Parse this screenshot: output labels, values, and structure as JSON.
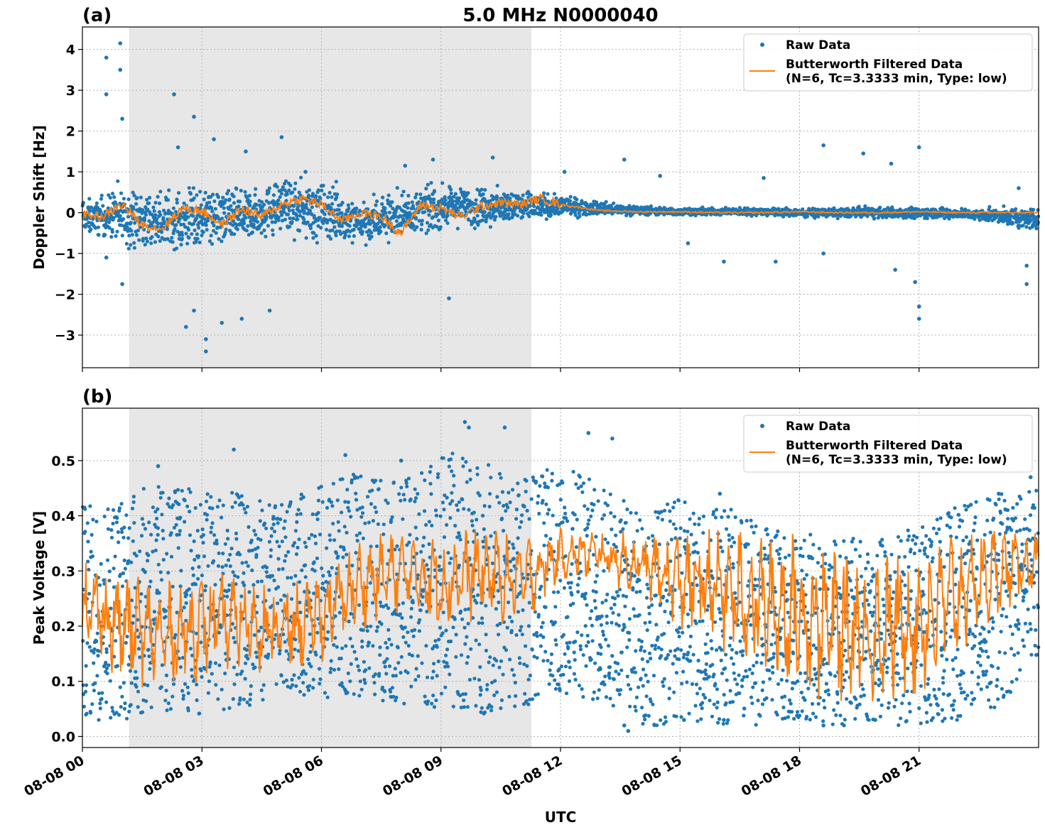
{
  "figure_title": "5.0 MHz N0000040",
  "xlabel": "UTC",
  "chart_data": [
    {
      "type": "scatter",
      "panel_label": "(a)",
      "title": "5.0 MHz N0000040",
      "xlabel": "",
      "ylabel": "Doppler Shift [Hz]",
      "xlim_hours": [
        0,
        24
      ],
      "ylim": [
        -3.8,
        4.55
      ],
      "yticks": [
        4,
        3,
        2,
        1,
        0,
        -1,
        -2,
        -3
      ],
      "ytick_labels": [
        "4",
        "3",
        "2",
        "1",
        "0",
        "−1",
        "−2",
        "−3"
      ],
      "shaded_interval_hours": [
        1.17,
        11.27
      ],
      "grid": true,
      "legend_position": "top-right",
      "series": [
        {
          "name": "Raw Data",
          "marker": "dot",
          "color": "#1f77b4",
          "envelope": {
            "x_hours": [
              0,
              1,
              2,
              3,
              4,
              5,
              6,
              7,
              8,
              9,
              10,
              11,
              12,
              13,
              14,
              15,
              16,
              17,
              18,
              19,
              20,
              21,
              22,
              23,
              24
            ],
            "upper": [
              0.4,
              0.9,
              0.7,
              0.9,
              0.8,
              1.0,
              1.0,
              0.6,
              0.8,
              0.9,
              0.8,
              0.7,
              0.5,
              0.3,
              0.2,
              0.15,
              0.15,
              0.15,
              0.15,
              0.15,
              0.2,
              0.2,
              0.15,
              0.15,
              0.3
            ],
            "lower": [
              -0.6,
              -1.0,
              -1.2,
              -1.1,
              -1.0,
              -0.7,
              -0.9,
              -1.0,
              -0.9,
              -0.6,
              -0.5,
              -0.4,
              -0.2,
              -0.1,
              -0.1,
              -0.1,
              -0.1,
              -0.1,
              -0.15,
              -0.15,
              -0.2,
              -0.2,
              -0.2,
              -0.3,
              -0.6
            ]
          },
          "outliers": [
            [
              0.6,
              3.8
            ],
            [
              0.6,
              2.9
            ],
            [
              0.95,
              4.15
            ],
            [
              0.95,
              3.5
            ],
            [
              1.0,
              2.3
            ],
            [
              0.6,
              -1.1
            ],
            [
              1.0,
              -1.75
            ],
            [
              2.3,
              2.9
            ],
            [
              2.4,
              1.6
            ],
            [
              2.6,
              -2.8
            ],
            [
              2.8,
              -2.4
            ],
            [
              2.8,
              2.35
            ],
            [
              3.1,
              -3.1
            ],
            [
              3.1,
              -3.4
            ],
            [
              3.3,
              1.8
            ],
            [
              3.5,
              -2.7
            ],
            [
              4.0,
              -2.6
            ],
            [
              4.1,
              1.5
            ],
            [
              4.7,
              -2.4
            ],
            [
              5.0,
              1.85
            ],
            [
              5.6,
              1.0
            ],
            [
              8.1,
              1.15
            ],
            [
              8.8,
              1.3
            ],
            [
              9.2,
              -2.1
            ],
            [
              10.3,
              1.35
            ],
            [
              12.1,
              1.0
            ],
            [
              13.6,
              1.3
            ],
            [
              14.5,
              0.9
            ],
            [
              15.2,
              -0.75
            ],
            [
              16.1,
              -1.2
            ],
            [
              17.1,
              0.85
            ],
            [
              17.4,
              -1.2
            ],
            [
              18.6,
              1.65
            ],
            [
              18.6,
              -1.0
            ],
            [
              19.6,
              1.45
            ],
            [
              20.3,
              1.2
            ],
            [
              20.4,
              -1.4
            ],
            [
              20.9,
              -1.7
            ],
            [
              21.0,
              -2.3
            ],
            [
              21.0,
              -2.6
            ],
            [
              21.0,
              1.6
            ],
            [
              23.5,
              0.6
            ],
            [
              23.7,
              -1.3
            ],
            [
              23.7,
              -1.75
            ]
          ]
        },
        {
          "name": "Butterworth Filtered Data\n(N=6, Tc=3.3333 min, Type: low)",
          "marker": "line",
          "color": "#ff7f0e",
          "x_hours": [
            0,
            0.5,
            1.0,
            1.5,
            2.0,
            2.5,
            3.0,
            3.5,
            4.0,
            4.5,
            5.0,
            5.5,
            6.0,
            6.5,
            7.0,
            7.5,
            8.0,
            8.5,
            9.0,
            9.5,
            10.0,
            10.5,
            11.0,
            11.5,
            12.0,
            13,
            14,
            15,
            16,
            17,
            18,
            19,
            20,
            21,
            22,
            23,
            24
          ],
          "y": [
            -0.05,
            -0.1,
            0.2,
            -0.3,
            -0.4,
            0.1,
            0.05,
            -0.3,
            0.1,
            -0.1,
            0.2,
            0.35,
            0.2,
            -0.2,
            0.0,
            -0.1,
            -0.5,
            0.2,
            0.1,
            -0.1,
            0.15,
            0.25,
            0.2,
            0.35,
            0.2,
            0.05,
            0.02,
            0.02,
            0.0,
            0.0,
            0.02,
            0.0,
            0.0,
            0.02,
            0.0,
            0.0,
            0.0
          ]
        }
      ]
    },
    {
      "type": "scatter",
      "panel_label": "(b)",
      "title": "",
      "xlabel": "UTC",
      "ylabel": "Peak Voltage [V]",
      "xlim_hours": [
        0,
        24
      ],
      "ylim": [
        -0.02,
        0.595
      ],
      "yticks": [
        0.5,
        0.4,
        0.3,
        0.2,
        0.1,
        0.0
      ],
      "ytick_labels": [
        "0.5",
        "0.4",
        "0.3",
        "0.2",
        "0.1",
        "0.0"
      ],
      "shaded_interval_hours": [
        1.17,
        11.27
      ],
      "grid": true,
      "legend_position": "top-right",
      "xtick_hours": [
        0,
        3,
        6,
        9,
        12,
        15,
        18,
        21
      ],
      "xtick_labels": [
        "08-08 00",
        "08-08 03",
        "08-08 06",
        "08-08 09",
        "08-08 12",
        "08-08 15",
        "08-08 18",
        "08-08 21"
      ],
      "series": [
        {
          "name": "Raw Data",
          "marker": "dot",
          "color": "#1f77b4",
          "envelope": {
            "x_hours": [
              0,
              1,
              2,
              3,
              4,
              5,
              6,
              7,
              8,
              9,
              10,
              11,
              12,
              13,
              14,
              15,
              16,
              17,
              18,
              19,
              20,
              21,
              22,
              23,
              24
            ],
            "upper": [
              0.42,
              0.44,
              0.46,
              0.45,
              0.44,
              0.42,
              0.46,
              0.48,
              0.46,
              0.52,
              0.5,
              0.47,
              0.49,
              0.46,
              0.41,
              0.43,
              0.42,
              0.39,
              0.37,
              0.36,
              0.36,
              0.38,
              0.42,
              0.44,
              0.45
            ],
            "lower": [
              0.03,
              0.03,
              0.04,
              0.04,
              0.05,
              0.08,
              0.07,
              0.07,
              0.06,
              0.05,
              0.04,
              0.05,
              0.08,
              0.06,
              0.02,
              0.02,
              0.02,
              0.02,
              0.03,
              0.02,
              0.02,
              0.02,
              0.03,
              0.05,
              0.15
            ]
          },
          "outliers": [
            [
              1.9,
              0.49
            ],
            [
              3.8,
              0.52
            ],
            [
              6.6,
              0.51
            ],
            [
              8.0,
              0.5
            ],
            [
              9.6,
              0.57
            ],
            [
              9.7,
              0.56
            ],
            [
              10.6,
              0.56
            ],
            [
              12.7,
              0.55
            ],
            [
              13.3,
              0.54
            ],
            [
              13.6,
              0.02
            ],
            [
              13.7,
              0.01
            ],
            [
              15.1,
              0.03
            ],
            [
              16.0,
              0.44
            ],
            [
              16.1,
              0.03
            ],
            [
              18.6,
              0.02
            ],
            [
              19.9,
              0.03
            ],
            [
              22.3,
              0.42
            ],
            [
              23.0,
              0.44
            ],
            [
              23.8,
              0.47
            ]
          ]
        },
        {
          "name": "Butterworth Filtered Data\n(N=6, Tc=3.3333 min, Type: low)",
          "marker": "line",
          "color": "#ff7f0e",
          "trend": {
            "x_hours": [
              0,
              1,
              2,
              3,
              4,
              5,
              6,
              7,
              8,
              9,
              10,
              11,
              12,
              13,
              14,
              15,
              16,
              17,
              18,
              19,
              20,
              21,
              22,
              23,
              24
            ],
            "mean": [
              0.24,
              0.2,
              0.18,
              0.2,
              0.21,
              0.19,
              0.22,
              0.28,
              0.3,
              0.28,
              0.3,
              0.28,
              0.33,
              0.33,
              0.31,
              0.28,
              0.27,
              0.24,
              0.22,
              0.2,
              0.19,
              0.21,
              0.26,
              0.3,
              0.32
            ],
            "amplitude": [
              0.08,
              0.09,
              0.08,
              0.08,
              0.07,
              0.07,
              0.07,
              0.07,
              0.06,
              0.08,
              0.07,
              0.07,
              0.04,
              0.04,
              0.05,
              0.08,
              0.1,
              0.11,
              0.12,
              0.12,
              0.12,
              0.12,
              0.1,
              0.07,
              0.04
            ]
          }
        }
      ]
    }
  ]
}
